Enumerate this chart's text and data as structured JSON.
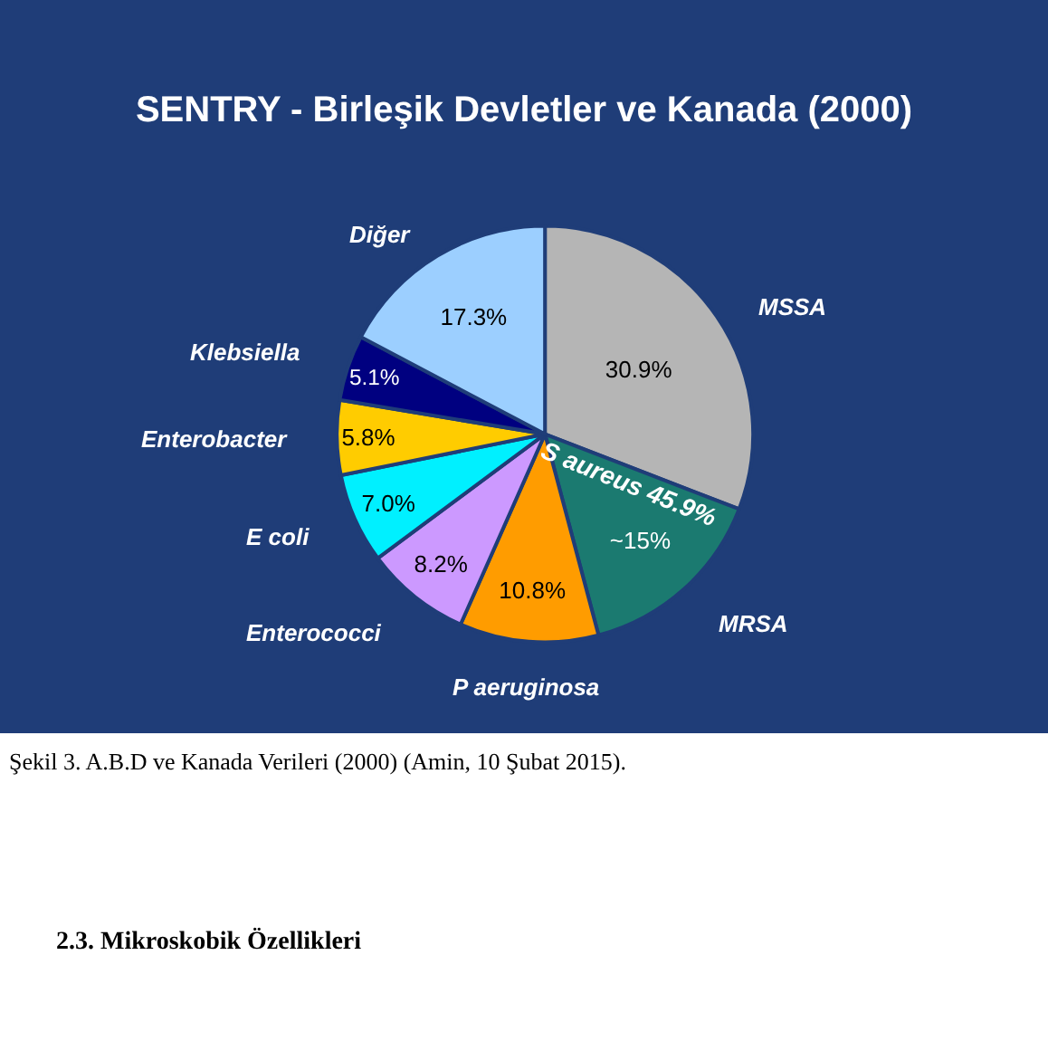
{
  "chart_data": {
    "type": "pie",
    "title": "SENTRY - Birleşik Devletler ve Kanada (2000)",
    "categories": [
      "MSSA",
      "MRSA",
      "P aeruginosa",
      "Enterococci",
      "E coli",
      "Enterobacter",
      "Klebsiella",
      "Diğer"
    ],
    "values": [
      30.9,
      15,
      10.8,
      8.2,
      7.0,
      5.8,
      5.1,
      17.3
    ],
    "value_labels": [
      "30.9%",
      "~15%",
      "10.8%",
      "8.2%",
      "7.0%",
      "5.8%",
      "5.1%",
      "17.3%"
    ],
    "colors": [
      "#b5b5b5",
      "#1b7a70",
      "#ff9c00",
      "#cc99ff",
      "#00f0ff",
      "#ffcc00",
      "#000080",
      "#9ccfff"
    ],
    "annotations": [
      "S aureus 45.9%",
      "Şekil 3. A.B.D ve Kanada Verileri (2000) (Amin, 10 Şubat 2015).",
      "2.3. Mikroskobik Özellikleri"
    ],
    "legend": false
  }
}
